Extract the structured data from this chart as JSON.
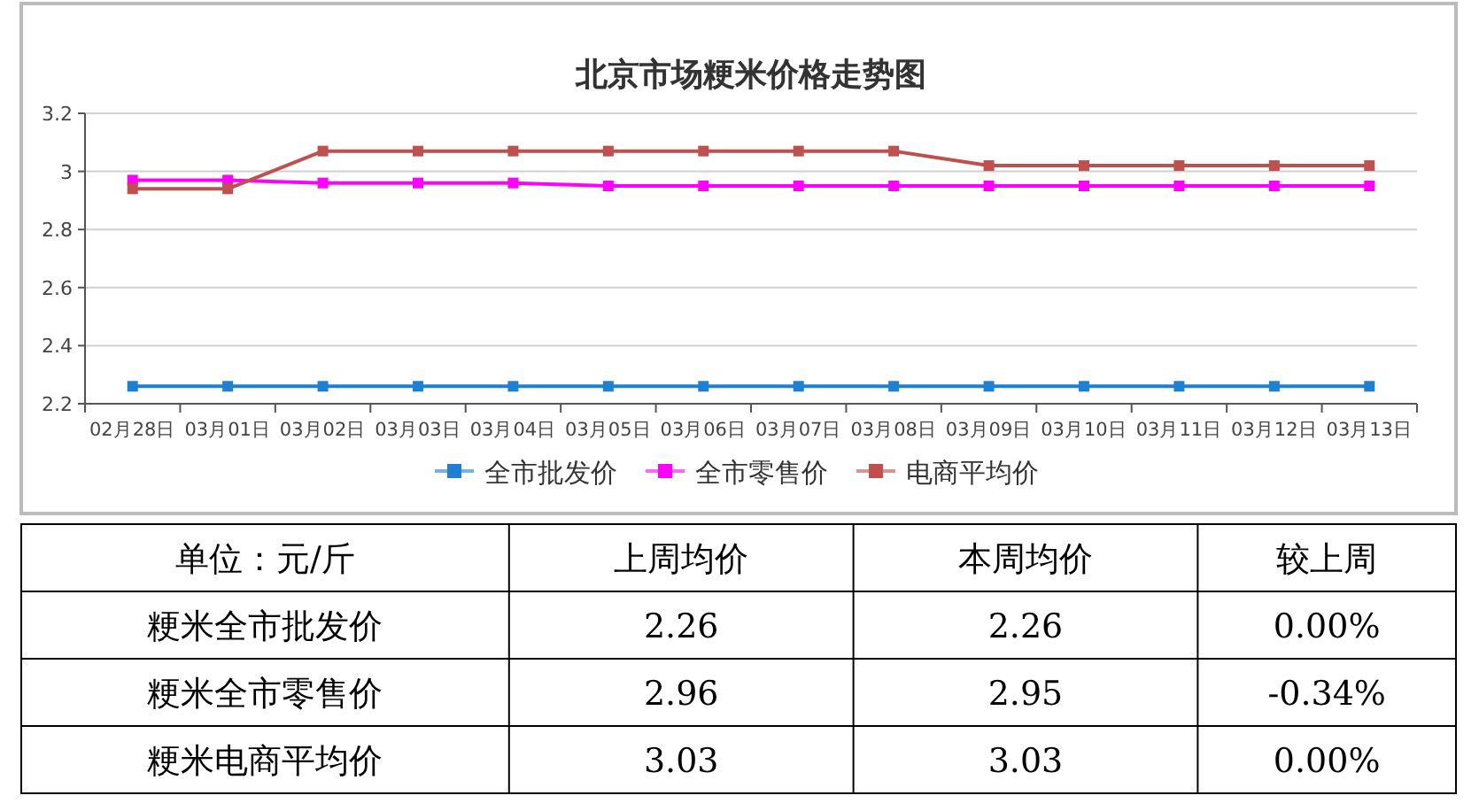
{
  "chart_data": [
    {
      "type": "line",
      "title": "北京市场粳米价格走势图",
      "categories": [
        "02月28日",
        "03月01日",
        "03月02日",
        "03月03日",
        "03月04日",
        "03月05日",
        "03月06日",
        "03月07日",
        "03月08日",
        "03月09日",
        "03月10日",
        "03月11日",
        "03月12日",
        "03月13日"
      ],
      "series": [
        {
          "name": "全市批发价",
          "color": "#1f7fd0",
          "values": [
            2.26,
            2.26,
            2.26,
            2.26,
            2.26,
            2.26,
            2.26,
            2.26,
            2.26,
            2.26,
            2.26,
            2.26,
            2.26,
            2.26
          ]
        },
        {
          "name": "全市零售价",
          "color": "#ff00ff",
          "values": [
            2.97,
            2.97,
            2.96,
            2.96,
            2.96,
            2.95,
            2.95,
            2.95,
            2.95,
            2.95,
            2.95,
            2.95,
            2.95,
            2.95
          ]
        },
        {
          "name": "电商平均价",
          "color": "#c0504d",
          "values": [
            2.94,
            2.94,
            3.07,
            3.07,
            3.07,
            3.07,
            3.07,
            3.07,
            3.07,
            3.02,
            3.02,
            3.02,
            3.02,
            3.02
          ]
        }
      ],
      "ylim": [
        2.2,
        3.2
      ],
      "yticks": [
        2.2,
        2.4,
        2.6,
        2.8,
        3,
        3.2
      ],
      "grid": "y",
      "legend": "bottom",
      "marker": "square",
      "line_style": "solid"
    },
    {
      "type": "other",
      "categories": [
        "单位：元/斤",
        "上周均价",
        "本周均价",
        "较上周"
      ],
      "y_categories": [
        "粳米全市批发价",
        "粳米全市零售价",
        "粳米电商平均价"
      ],
      "cell_labels": [
        [
          "2.26",
          "2.26",
          "0.00%"
        ],
        [
          "2.96",
          "2.95",
          "-0.34%"
        ],
        [
          "3.03",
          "3.03",
          "0.00%"
        ]
      ]
    }
  ]
}
